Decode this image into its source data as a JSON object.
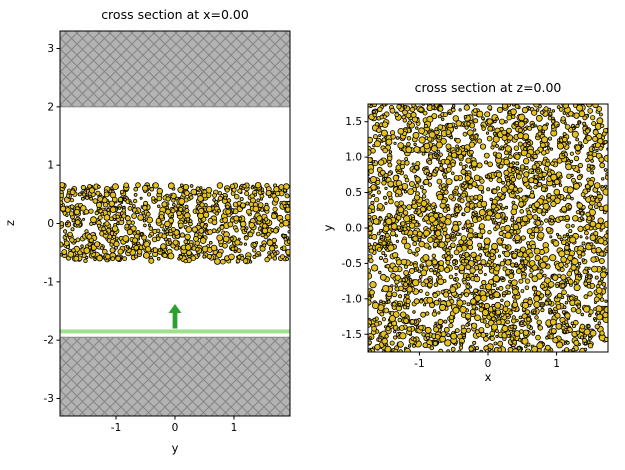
{
  "page": {
    "background": "#ffffff"
  },
  "chart_data": [
    {
      "type": "scatter",
      "name": "cross-section-x",
      "title": "cross section at x=0.00",
      "xlabel": "y",
      "ylabel": "z",
      "xlim": [
        -1.95,
        1.95
      ],
      "ylim": [
        -3.3,
        3.3
      ],
      "xtick_values": [
        -1,
        0,
        1
      ],
      "xtick_labels": [
        "-1",
        "0",
        "1"
      ],
      "ytick_values": [
        -3,
        -2,
        -1,
        0,
        1,
        2,
        3
      ],
      "ytick_labels": [
        "-3",
        "-2",
        "-1",
        "0",
        "1",
        "2",
        "3"
      ],
      "grid": false,
      "wall_fill": "#b3b3b3",
      "wall_hatch_color": "#878787",
      "walls": [
        {
          "name": "top-wall",
          "z0": 2.0,
          "z1": 3.3
        },
        {
          "name": "bottom-wall",
          "z0": -3.3,
          "z1": -1.95
        }
      ],
      "piston_line": {
        "z": -1.85,
        "color": "#9fe08d",
        "thickness": 4
      },
      "arrow": {
        "y": 0,
        "z_tail": -1.8,
        "z_tip": -1.38,
        "color": "#2ca02c"
      },
      "particles": {
        "count": 950,
        "h_range": [
          -1.95,
          1.95
        ],
        "v_range": [
          -0.66,
          0.66
        ],
        "r_min": 1.1,
        "r_max": 3.0,
        "fill": "#e5c11d",
        "edge": "#000000",
        "seed": 42
      }
    },
    {
      "type": "scatter",
      "name": "cross-section-z",
      "title": "cross section at z=0.00",
      "xlabel": "x",
      "ylabel": "y",
      "xlim": [
        -1.75,
        1.75
      ],
      "ylim": [
        -1.75,
        1.75
      ],
      "xtick_values": [
        -1,
        0,
        1
      ],
      "xtick_labels": [
        "-1",
        "0",
        "1"
      ],
      "ytick_values": [
        -1.5,
        -1.0,
        -0.5,
        0.0,
        0.5,
        1.0,
        1.5
      ],
      "ytick_labels": [
        "-1.5",
        "-1.0",
        "-0.5",
        "0.0",
        "0.5",
        "1.0",
        "1.5"
      ],
      "grid": false,
      "particles": {
        "count": 2600,
        "h_range": [
          -1.75,
          1.75
        ],
        "v_range": [
          -1.75,
          1.75
        ],
        "r_min": 1.1,
        "r_max": 3.2,
        "fill": "#e5c11d",
        "edge": "#000000",
        "seed": 7
      }
    }
  ]
}
